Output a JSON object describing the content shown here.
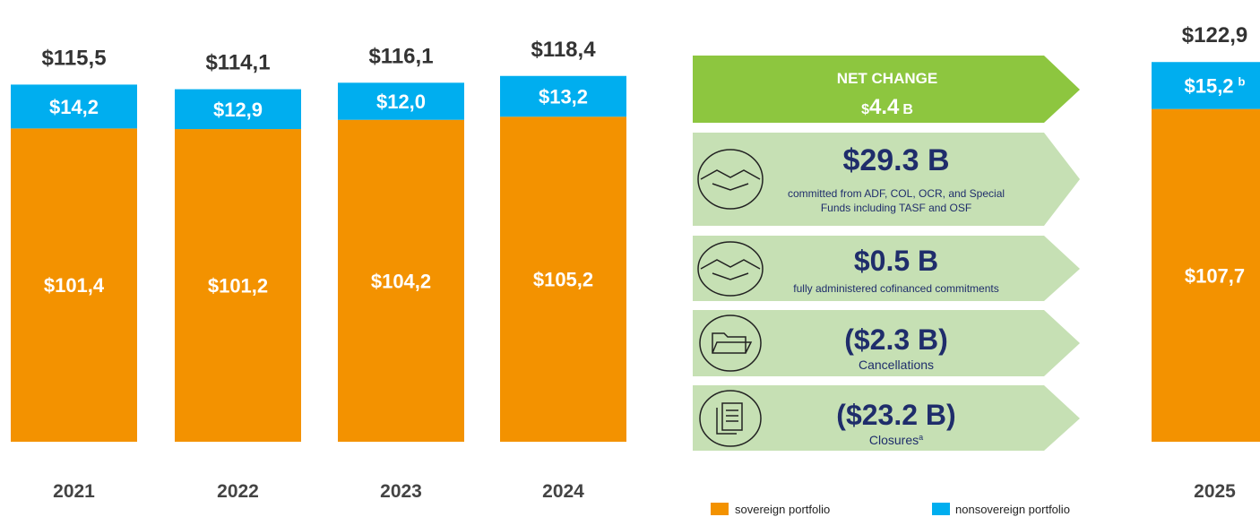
{
  "chart_data": {
    "type": "stacked_bar",
    "categories": [
      "2021",
      "2022",
      "2023",
      "2024",
      "2025"
    ],
    "series": [
      {
        "name": "sovereign portfolio",
        "color": "#f39200",
        "values": [
          101.4,
          101.2,
          104.2,
          105.2,
          107.7
        ],
        "value_labels": [
          "$101,4",
          "$101,2",
          "$104,2",
          "$105,2",
          "$107,7"
        ]
      },
      {
        "name": "nonsovereign portfolio",
        "color": "#00aeef",
        "values": [
          14.2,
          12.9,
          12.0,
          13.2,
          15.2
        ],
        "value_labels": [
          "$14,2",
          "$12,9",
          "$12,0",
          "$13,2",
          "$15,2"
        ],
        "label_notes": [
          null,
          null,
          null,
          null,
          "b"
        ]
      }
    ],
    "totals": [
      115.5,
      114.1,
      116.1,
      118.4,
      122.9
    ],
    "total_labels": [
      "$115,5",
      "$114,1",
      "$116,1",
      "$118,4",
      "$122,9"
    ],
    "ylim": [
      0,
      125
    ],
    "net_change": {
      "title": "NET CHANGE",
      "prefix": "$",
      "amount": "4.4",
      "unit": "B"
    },
    "changes": [
      {
        "amount": "$29.3 B",
        "description": "committed from ADF, COL, OCR, and Special Funds including TASF and OSF"
      },
      {
        "amount": "$0.5 B",
        "description": "fully administered cofinanced commitments"
      },
      {
        "amount": "($2.3 B)",
        "description": "Cancellations"
      },
      {
        "amount": "($23.2 B)",
        "description": "Closures",
        "note": "a"
      }
    ]
  }
}
